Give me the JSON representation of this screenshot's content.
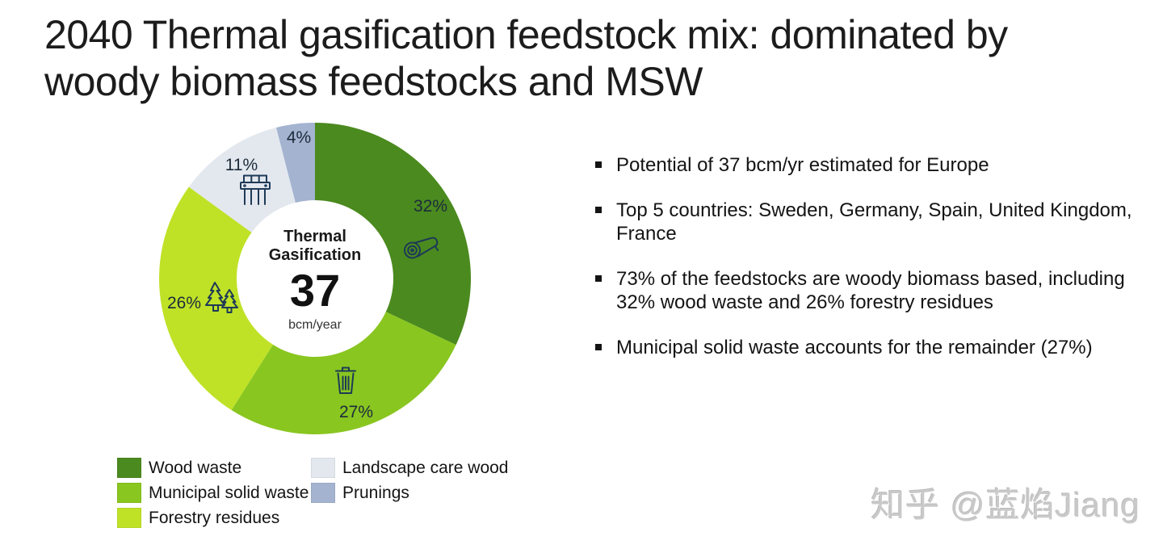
{
  "title": "2040 Thermal gasification feedstock mix: dominated by woody biomass feedstocks and MSW",
  "chart_data": {
    "type": "pie",
    "subtype": "donut",
    "title": "Thermal Gasification feedstock mix 2040",
    "start": "top, clockwise",
    "total_value": 37,
    "total_unit": "bcm/year",
    "segments": [
      {
        "id": "wood-waste",
        "label": "Wood waste",
        "value": 32,
        "pct": "32%",
        "color": "#4b8a1f",
        "icon": "log-icon"
      },
      {
        "id": "municipal-solid-waste",
        "label": "Municipal solid waste",
        "value": 27,
        "pct": "27%",
        "color": "#89c620",
        "icon": "trash-icon"
      },
      {
        "id": "forestry-residues",
        "label": "Forestry residues",
        "value": 26,
        "pct": "26%",
        "color": "#bfe227",
        "icon": "pine-trees-icon"
      },
      {
        "id": "landscape-care-wood",
        "label": "Landscape care wood",
        "value": 11,
        "pct": "11%",
        "color": "#e3e8ef",
        "icon": "fence-icon"
      },
      {
        "id": "prunings",
        "label": "Prunings",
        "value": 4,
        "pct": "4%",
        "color": "#a4b3d0",
        "icon": null
      }
    ],
    "center": {
      "label": "Thermal Gasification",
      "value": "37",
      "unit": "bcm/year"
    },
    "legend_position": "bottom-left"
  },
  "bullets": [
    "Potential of 37 bcm/yr estimated for Europe",
    "Top 5 countries: Sweden, Germany, Spain, United Kingdom, France",
    "73% of the feedstocks are woody biomass based, including 32% wood waste and 26% forestry residues",
    "Municipal solid waste accounts for the remainder (27%)"
  ],
  "watermark": "知乎 @蓝焰Jiang"
}
